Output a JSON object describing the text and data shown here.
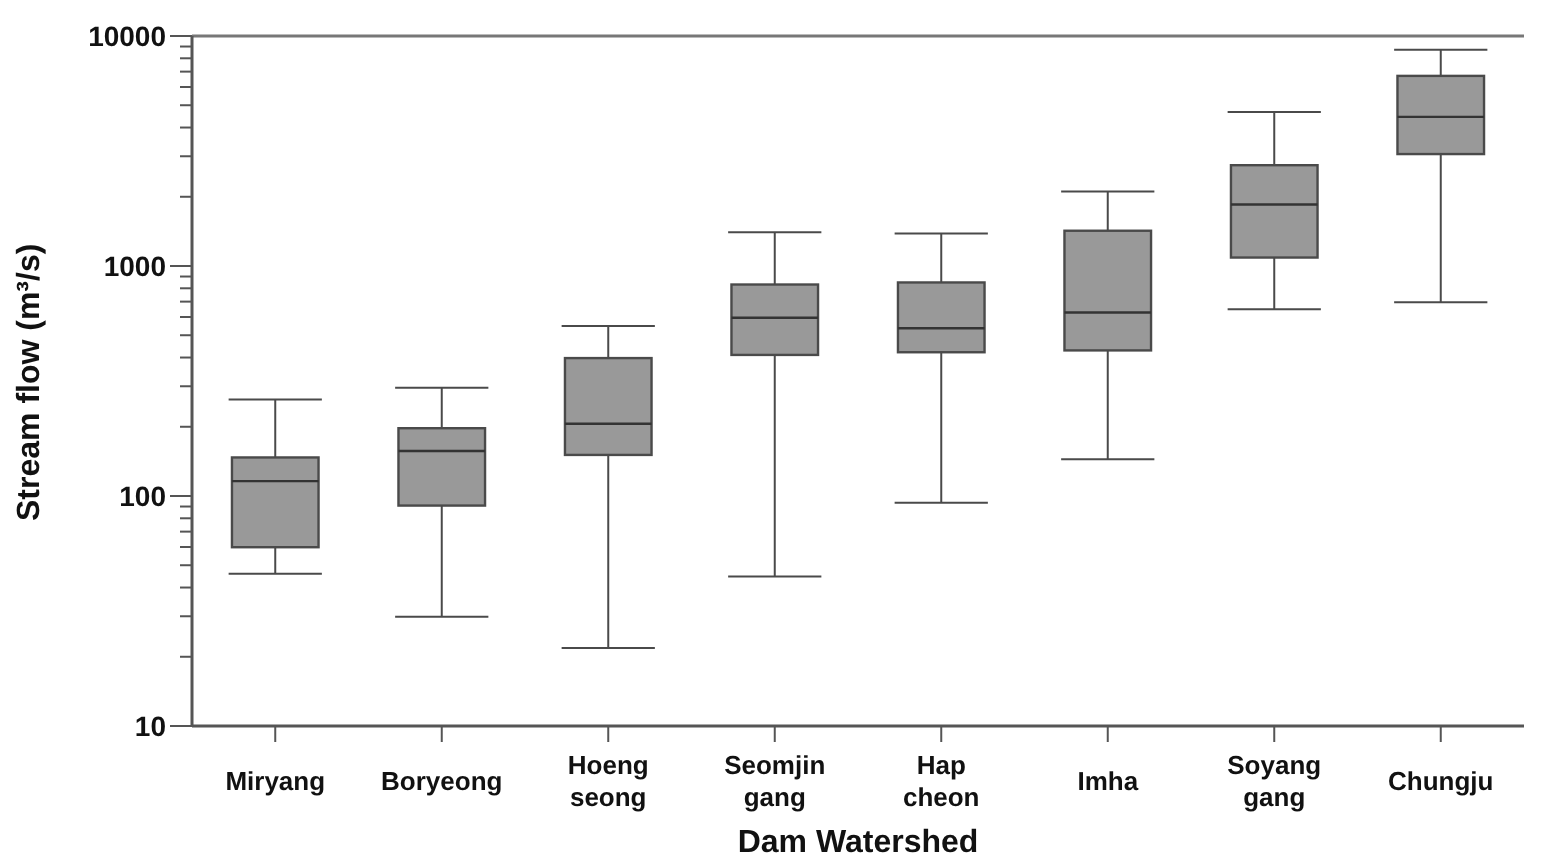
{
  "chart_data": {
    "type": "box",
    "xlabel": "Dam Watershed",
    "ylabel": "Stream flow (m³/s)",
    "log": "y",
    "color": "#999999",
    "categories": [
      "Miryang",
      "Boryeong",
      "Hoeng seong",
      "Seomjin gang",
      "Hap cheon",
      "Imha",
      "Soyang gang",
      "Chungju"
    ],
    "boxes": [
      {
        "low": 46,
        "q1": 60,
        "median": 116,
        "q3": 147,
        "high": 262
      },
      {
        "low": 30,
        "q1": 91,
        "median": 157,
        "q3": 197,
        "high": 295
      },
      {
        "low": 22,
        "q1": 151,
        "median": 206,
        "q3": 397,
        "high": 547
      },
      {
        "low": 45,
        "q1": 411,
        "median": 596,
        "q3": 830,
        "high": 1400
      },
      {
        "low": 94,
        "q1": 422,
        "median": 536,
        "q3": 847,
        "high": 1380
      },
      {
        "low": 145,
        "q1": 430,
        "median": 628,
        "q3": 1420,
        "high": 2100
      },
      {
        "low": 650,
        "q1": 1090,
        "median": 1850,
        "q3": 2740,
        "high": 4660
      },
      {
        "low": 700,
        "q1": 3070,
        "median": 4450,
        "q3": 6700,
        "high": 8700
      }
    ],
    "ylim": [
      10,
      10000
    ],
    "yticks": [
      10,
      {
        "value": 20,
        "label": null
      },
      {
        "value": 30,
        "label": null
      },
      {
        "value": 40,
        "label": null
      },
      {
        "value": 50,
        "label": null
      },
      {
        "value": 60,
        "label": null
      },
      {
        "value": 70,
        "label": null
      },
      {
        "value": 80,
        "label": null
      },
      {
        "value": 90,
        "label": null
      },
      100,
      {
        "value": 200,
        "label": null
      },
      {
        "value": 300,
        "label": null
      },
      {
        "value": 400,
        "label": null
      },
      {
        "value": 500,
        "label": null
      },
      {
        "value": 600,
        "label": null
      },
      {
        "value": 700,
        "label": null
      },
      {
        "value": 800,
        "label": null
      },
      {
        "value": 900,
        "label": null
      },
      1000,
      {
        "value": 2000,
        "label": null
      },
      {
        "value": 3000,
        "label": null
      },
      {
        "value": 4000,
        "label": null
      },
      {
        "value": 5000,
        "label": null
      },
      {
        "value": 6000,
        "label": null
      },
      {
        "value": 7000,
        "label": null
      },
      {
        "value": 8000,
        "label": null
      },
      {
        "value": 9000,
        "label": null
      },
      10000
    ],
    "grid": false
  }
}
